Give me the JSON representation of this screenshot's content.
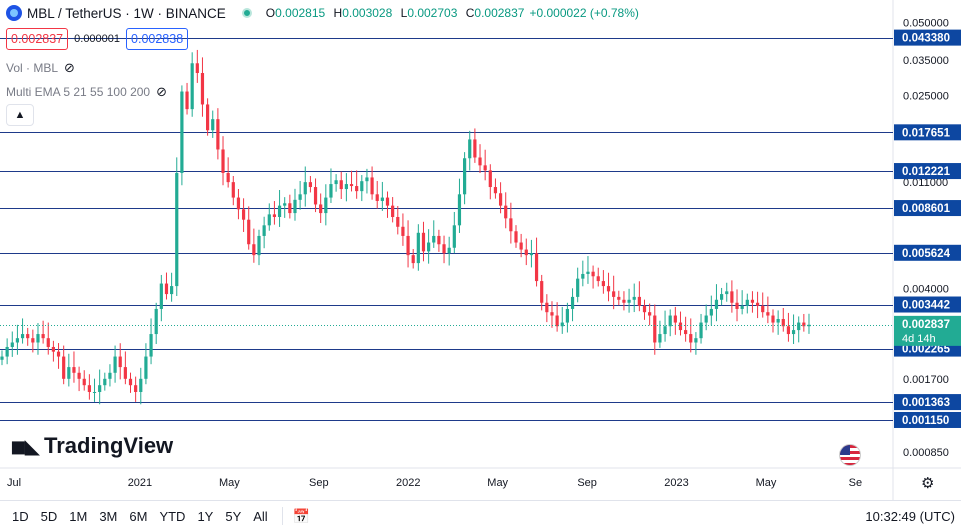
{
  "symbol": {
    "title": "MBL / TetherUS · 1W · BINANCE",
    "ohlc": {
      "o_label": "O",
      "o": "0.002815",
      "h_label": "H",
      "h": "0.003028",
      "l_label": "L",
      "l": "0.002703",
      "c_label": "C",
      "c": "0.002837"
    },
    "change": "+0.000022 (+0.78%)"
  },
  "trade": {
    "sell": "0.002837",
    "spread": "0.000001",
    "buy": "0.002838"
  },
  "indicators": {
    "vol": "Vol · MBL",
    "ema": "Multi EMA 5 21 55 100 200"
  },
  "watermark": "TradingView",
  "timeframes": [
    "1D",
    "5D",
    "1M",
    "3M",
    "6M",
    "YTD",
    "1Y",
    "5Y",
    "All"
  ],
  "clock": "10:32:49 (UTC)",
  "countdown": "4d 14h",
  "colors": {
    "up": "#22ab94",
    "down": "#f23645",
    "hline": "#1e3a8a",
    "label_bg": "#0d47a1",
    "accent": "#2962ff"
  },
  "chart_data": {
    "type": "candlestick",
    "scale": "log",
    "ylim": [
      0.00075,
      0.062
    ],
    "x_ticks": [
      {
        "label": "Jul",
        "t": 0
      },
      {
        "label": "2021",
        "t": 24.5
      },
      {
        "label": "May",
        "t": 41.9
      },
      {
        "label": "Sep",
        "t": 59.3
      },
      {
        "label": "2022",
        "t": 76.7
      },
      {
        "label": "May",
        "t": 94.1
      },
      {
        "label": "Sep",
        "t": 111.5
      },
      {
        "label": "2023",
        "t": 128.9
      },
      {
        "label": "May",
        "t": 146.3
      },
      {
        "label": "Se",
        "t": 163.7
      }
    ],
    "y_ticks": [
      0.05,
      0.035,
      0.025,
      0.011,
      0.004,
      0.0017,
      0.00085
    ],
    "y_tick_labels": [
      "0.050000",
      "0.035000",
      "0.025000",
      "0.011000",
      "0.004000",
      "0.001700",
      "0.000850"
    ],
    "hlines": [
      {
        "value": 0.04338,
        "label": "0.043380"
      },
      {
        "value": 0.017651,
        "label": "0.017651"
      },
      {
        "value": 0.012221,
        "label": "0.012221"
      },
      {
        "value": 0.008601,
        "label": "0.008601"
      },
      {
        "value": 0.005624,
        "label": "0.005624"
      },
      {
        "value": 0.003442,
        "label": "0.003442"
      },
      {
        "value": 0.002265,
        "label": "0.002265"
      },
      {
        "value": 0.001363,
        "label": "0.001363"
      },
      {
        "value": 0.00115,
        "label": "0.001150"
      }
    ],
    "last_price": {
      "value": 0.002837,
      "label": "0.002837"
    },
    "closes": [
      0.0021,
      0.0023,
      0.0024,
      0.0025,
      0.0026,
      0.0025,
      0.0024,
      0.0026,
      0.0025,
      0.0023,
      0.0022,
      0.0021,
      0.0017,
      0.0019,
      0.0018,
      0.0017,
      0.0016,
      0.0015,
      0.0015,
      0.0016,
      0.0017,
      0.0018,
      0.0021,
      0.0019,
      0.0017,
      0.0016,
      0.0015,
      0.0017,
      0.0021,
      0.0026,
      0.0033,
      0.0042,
      0.0038,
      0.0041,
      0.012,
      0.026,
      0.022,
      0.034,
      0.031,
      0.023,
      0.018,
      0.02,
      0.015,
      0.012,
      0.011,
      0.0095,
      0.0085,
      0.0077,
      0.0061,
      0.0055,
      0.0066,
      0.0073,
      0.0081,
      0.0079,
      0.0088,
      0.009,
      0.0082,
      0.0093,
      0.0098,
      0.011,
      0.0105,
      0.0089,
      0.0082,
      0.0095,
      0.0108,
      0.0112,
      0.0103,
      0.0108,
      0.0106,
      0.0101,
      0.0111,
      0.0115,
      0.0098,
      0.0092,
      0.0095,
      0.0088,
      0.0079,
      0.0072,
      0.0066,
      0.0055,
      0.0051,
      0.0068,
      0.0057,
      0.0062,
      0.0066,
      0.0061,
      0.0056,
      0.0059,
      0.0073,
      0.0098,
      0.0138,
      0.0165,
      0.0139,
      0.0129,
      0.0123,
      0.0105,
      0.0099,
      0.0088,
      0.0078,
      0.0069,
      0.0062,
      0.0058,
      0.0055,
      0.0056,
      0.0043,
      0.0035,
      0.0032,
      0.0031,
      0.0028,
      0.0029,
      0.0033,
      0.0037,
      0.0044,
      0.0046,
      0.0047,
      0.0045,
      0.0043,
      0.0041,
      0.0039,
      0.0037,
      0.0036,
      0.0035,
      0.0036,
      0.0037,
      0.0034,
      0.0032,
      0.0031,
      0.0024,
      0.0026,
      0.0028,
      0.0031,
      0.0029,
      0.0027,
      0.0026,
      0.0024,
      0.0025,
      0.0029,
      0.0031,
      0.0033,
      0.0036,
      0.0038,
      0.0039,
      0.0035,
      0.0033,
      0.0034,
      0.0036,
      0.0035,
      0.0034,
      0.0032,
      0.0031,
      0.0029,
      0.003,
      0.0028,
      0.0026,
      0.0027,
      0.0029,
      0.0028,
      0.00284
    ]
  }
}
